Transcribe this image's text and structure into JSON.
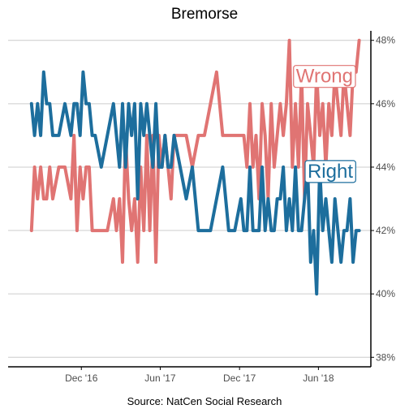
{
  "chart_data": {
    "type": "line",
    "title": "Bremorse",
    "source": "Source: NatCen Social Research",
    "x_tick_labels": [
      "Dec '16",
      "Jun '17",
      "Dec '17",
      "Jun '18"
    ],
    "x_tick_dates": [
      "2016-12-01",
      "2017-06-01",
      "2017-12-01",
      "2018-06-01"
    ],
    "xlim": [
      "2016-06-15",
      "2018-09-30"
    ],
    "y_ticks": [
      38,
      40,
      42,
      44,
      46,
      48
    ],
    "y_tick_labels": [
      "38%",
      "40%",
      "42%",
      "44%",
      "46%",
      "48%"
    ],
    "ylim": [
      37.7,
      48.3
    ],
    "grid": true,
    "y_axis_position": "right",
    "series": [
      {
        "name": "Wrong",
        "color": "#e07473",
        "label_position": "upper-right",
        "x": [
          "2016-08-08",
          "2016-08-15",
          "2016-08-22",
          "2016-08-29",
          "2016-09-05",
          "2016-09-12",
          "2016-09-19",
          "2016-09-26",
          "2016-10-10",
          "2016-10-24",
          "2016-11-07",
          "2016-11-14",
          "2016-11-21",
          "2016-11-28",
          "2016-12-05",
          "2016-12-12",
          "2016-12-19",
          "2016-12-26",
          "2017-01-02",
          "2017-01-16",
          "2017-01-30",
          "2017-02-13",
          "2017-02-20",
          "2017-02-27",
          "2017-03-06",
          "2017-03-13",
          "2017-03-20",
          "2017-03-27",
          "2017-04-03",
          "2017-04-10",
          "2017-04-17",
          "2017-04-24",
          "2017-05-01",
          "2017-05-08",
          "2017-05-15",
          "2017-05-22",
          "2017-05-29",
          "2017-06-05",
          "2017-06-12",
          "2017-06-19",
          "2017-06-26",
          "2017-07-03",
          "2017-07-17",
          "2017-07-31",
          "2017-08-14",
          "2017-08-28",
          "2017-09-11",
          "2017-09-25",
          "2017-10-09",
          "2017-10-23",
          "2017-11-06",
          "2017-11-20",
          "2017-12-04",
          "2017-12-11",
          "2017-12-18",
          "2017-12-25",
          "2018-01-01",
          "2018-01-08",
          "2018-01-15",
          "2018-01-22",
          "2018-01-29",
          "2018-02-05",
          "2018-02-12",
          "2018-02-19",
          "2018-02-26",
          "2018-03-05",
          "2018-03-12",
          "2018-03-19",
          "2018-03-26",
          "2018-04-02",
          "2018-04-09",
          "2018-04-16",
          "2018-04-23",
          "2018-04-30",
          "2018-05-07",
          "2018-05-14",
          "2018-05-21",
          "2018-05-28",
          "2018-06-04",
          "2018-06-11",
          "2018-06-18",
          "2018-06-25",
          "2018-07-02",
          "2018-07-09",
          "2018-07-16",
          "2018-07-23",
          "2018-07-30",
          "2018-08-06",
          "2018-08-13",
          "2018-08-20",
          "2018-08-27",
          "2018-09-03"
        ],
        "values": [
          42,
          44,
          43,
          44,
          43,
          43,
          44,
          43,
          44,
          44,
          43,
          45,
          42,
          44,
          43,
          44,
          44,
          42,
          42,
          42,
          42,
          43,
          42,
          43,
          41,
          45,
          43,
          42,
          43,
          41,
          44,
          42,
          45,
          42,
          45,
          41,
          45,
          44,
          45,
          44,
          43,
          45,
          45,
          45,
          44,
          45,
          45,
          46,
          47,
          45,
          45,
          45,
          45,
          45,
          44,
          46,
          44,
          45,
          43,
          46,
          45,
          43,
          46,
          44,
          45,
          46,
          45,
          46,
          48,
          44,
          46,
          44,
          47,
          43,
          46,
          45,
          44,
          47,
          45,
          46,
          44,
          46,
          45,
          47,
          46,
          45,
          47,
          46,
          45,
          47,
          47,
          48
        ]
      },
      {
        "name": "Right",
        "color": "#1d6e9d",
        "label_position": "right",
        "x": [
          "2016-08-08",
          "2016-08-15",
          "2016-08-22",
          "2016-08-29",
          "2016-09-05",
          "2016-09-12",
          "2016-09-19",
          "2016-09-26",
          "2016-10-10",
          "2016-10-24",
          "2016-11-07",
          "2016-11-14",
          "2016-11-21",
          "2016-11-28",
          "2016-12-05",
          "2016-12-12",
          "2016-12-19",
          "2016-12-26",
          "2017-01-02",
          "2017-01-16",
          "2017-01-30",
          "2017-02-13",
          "2017-02-20",
          "2017-02-27",
          "2017-03-06",
          "2017-03-13",
          "2017-03-20",
          "2017-03-27",
          "2017-04-03",
          "2017-04-10",
          "2017-04-17",
          "2017-04-24",
          "2017-05-01",
          "2017-05-08",
          "2017-05-15",
          "2017-05-22",
          "2017-05-29",
          "2017-06-05",
          "2017-06-12",
          "2017-06-19",
          "2017-06-26",
          "2017-07-03",
          "2017-07-17",
          "2017-07-31",
          "2017-08-14",
          "2017-08-28",
          "2017-09-11",
          "2017-09-25",
          "2017-10-09",
          "2017-10-23",
          "2017-11-06",
          "2017-11-20",
          "2017-12-04",
          "2017-12-11",
          "2017-12-18",
          "2017-12-25",
          "2018-01-01",
          "2018-01-08",
          "2018-01-15",
          "2018-01-22",
          "2018-01-29",
          "2018-02-05",
          "2018-02-12",
          "2018-02-19",
          "2018-02-26",
          "2018-03-05",
          "2018-03-12",
          "2018-03-19",
          "2018-03-26",
          "2018-04-02",
          "2018-04-09",
          "2018-04-16",
          "2018-04-23",
          "2018-04-30",
          "2018-05-07",
          "2018-05-14",
          "2018-05-21",
          "2018-05-28",
          "2018-06-04",
          "2018-06-11",
          "2018-06-18",
          "2018-06-25",
          "2018-07-02",
          "2018-07-09",
          "2018-07-16",
          "2018-07-23",
          "2018-07-30",
          "2018-08-06",
          "2018-08-13",
          "2018-08-20",
          "2018-08-27",
          "2018-09-03"
        ],
        "values": [
          46,
          45,
          46,
          45,
          47,
          46,
          46,
          45,
          45,
          46,
          45,
          46,
          46,
          45,
          47,
          46,
          46,
          45,
          45,
          44,
          45,
          46,
          45,
          44,
          46,
          44,
          46,
          45,
          46,
          43,
          46,
          45,
          46,
          45,
          44,
          46,
          44,
          44,
          45,
          44,
          44,
          45,
          44,
          43,
          44,
          42,
          42,
          42,
          43,
          44,
          42,
          42,
          43,
          42,
          42,
          44,
          42,
          42,
          42,
          44,
          42,
          43,
          42,
          42,
          43,
          43,
          44,
          42,
          43,
          42,
          44,
          42,
          42,
          43,
          44,
          41,
          42,
          40,
          44,
          42,
          43,
          42,
          41,
          43,
          42,
          41,
          42,
          42,
          43,
          41,
          42,
          42
        ]
      }
    ]
  }
}
